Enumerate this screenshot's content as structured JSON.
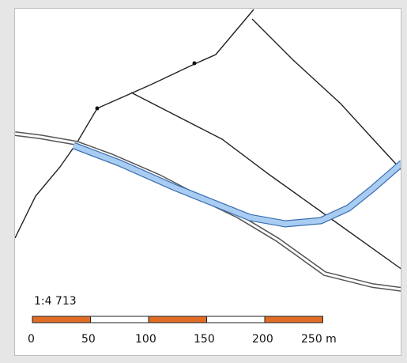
{
  "map": {
    "scale_ratio_label": "1:4 713",
    "scalebar": {
      "ticks": [
        "0",
        "50",
        "100",
        "150",
        "200",
        "250 m"
      ],
      "segment_colors": [
        "#e06c26",
        "#ffffff",
        "#e06c26",
        "#ffffff",
        "#e06c26"
      ]
    },
    "colors": {
      "water": "#a9cdf2",
      "water_outline": "#3c6fb0",
      "road_outline": "#555555",
      "boundary_line": "#222222"
    }
  }
}
